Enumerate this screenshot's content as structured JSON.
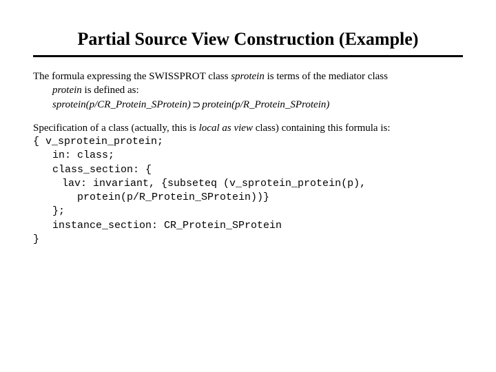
{
  "title": "Partial Source View Construction (Example)",
  "p1": {
    "prefix": "The formula expressing the SWISSPROT class ",
    "term1": "sprotein",
    "mid1": " is terms of the mediator class",
    "term2": "protein",
    "tail": " is defined as:",
    "formula_left": "sprotein(p/CR_Protein_SProtein)",
    "arrow": "⊃",
    "formula_right": "protein(p/R_Protein_SProtein)"
  },
  "p2": {
    "prefix": "Specification of a class (actually, this is ",
    "emph": "local as view",
    "suffix": " class) containing this formula is:",
    "c0": "{ v_sprotein_protein;",
    "c1": "in: class;",
    "c2": "class_section: {",
    "c3": "lav: invariant, {subseteq (v_sprotein_protein(p),",
    "c4": "protein(p/R_Protein_SProtein))}",
    "c5": "};",
    "c6": "instance_section: CR_Protein_SProtein",
    "c7": "}"
  },
  "colors": {
    "text": "#000000",
    "background": "#ffffff",
    "rule": "#000000"
  },
  "fontsizes": {
    "title": 26,
    "body": 15
  }
}
